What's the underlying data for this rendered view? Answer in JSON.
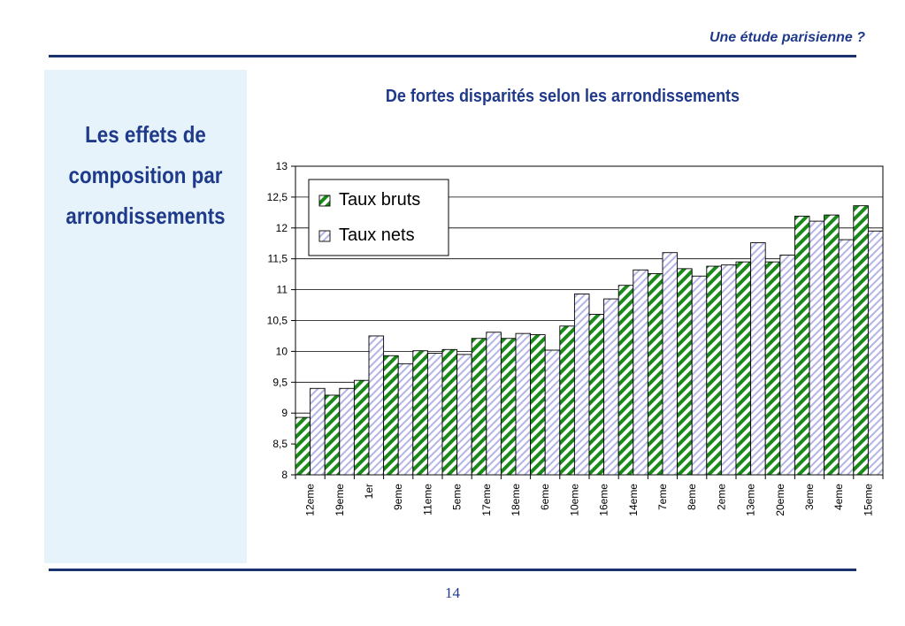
{
  "header": {
    "title": "Une étude parisienne ?"
  },
  "left_panel": {
    "lines": [
      "Les effets de",
      "composition par",
      "arrondissements"
    ]
  },
  "footer": {
    "page_number": "14"
  },
  "colors": {
    "brand_blue": "#1f3a8a",
    "bruts_green": "#1a8a1a",
    "nets_lavender": "#b4b4e6",
    "panel_bg": "#e6f3fb"
  },
  "chart_data": {
    "type": "bar",
    "title": "De fortes disparités selon les arrondissements",
    "xlabel": "",
    "ylabel": "",
    "ylim": [
      8,
      13
    ],
    "yticks": [
      8,
      8.5,
      9,
      9.5,
      10,
      10.5,
      11,
      11.5,
      12,
      12.5,
      13
    ],
    "ytick_labels": [
      "8",
      "8,5",
      "9",
      "9,5",
      "10",
      "10,5",
      "11",
      "11,5",
      "12",
      "12,5",
      "13"
    ],
    "grid": "horizontal",
    "legend": "top-left",
    "categories": [
      "12eme",
      "19eme",
      "1er",
      "9eme",
      "11eme",
      "5eme",
      "17eme",
      "18eme",
      "6eme",
      "10eme",
      "16eme",
      "14eme",
      "7eme",
      "8eme",
      "2eme",
      "13eme",
      "20eme",
      "3eme",
      "4eme",
      "15eme"
    ],
    "series": [
      {
        "name": "Taux bruts",
        "values": [
          8.93,
          9.29,
          9.53,
          9.93,
          10.01,
          10.03,
          10.21,
          10.21,
          10.27,
          10.41,
          10.6,
          11.07,
          11.26,
          11.34,
          11.38,
          11.45,
          11.45,
          12.19,
          12.21,
          12.36
        ]
      },
      {
        "name": "Taux nets",
        "values": [
          9.4,
          9.4,
          10.25,
          9.8,
          9.97,
          9.95,
          10.31,
          10.29,
          10.02,
          10.93,
          10.85,
          11.32,
          11.6,
          11.22,
          11.4,
          11.76,
          11.56,
          12.11,
          11.81,
          11.95
        ]
      }
    ]
  }
}
